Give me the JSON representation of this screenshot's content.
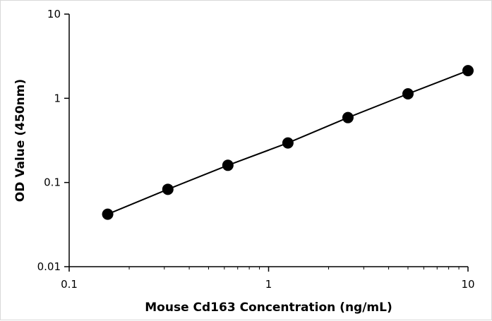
{
  "chart_data": {
    "type": "scatter",
    "title": "",
    "xlabel": "Mouse Cd163 Concentration (ng/mL)",
    "ylabel": "OD Value (450nm)",
    "x_scale": "log",
    "y_scale": "log",
    "xlim": [
      0.1,
      10
    ],
    "ylim": [
      0.01,
      10
    ],
    "x_ticks": [
      0.1,
      1,
      10
    ],
    "x_tick_labels": [
      "0.1",
      "1",
      "10"
    ],
    "y_ticks": [
      0.01,
      0.1,
      1,
      10
    ],
    "y_tick_labels": [
      "0.01",
      "0.1",
      "1",
      "10"
    ],
    "grid": false,
    "legend": "none",
    "fit_line": true,
    "series": [
      {
        "x": [
          0.156,
          0.3125,
          0.625,
          1.25,
          2.5,
          5,
          10
        ],
        "y": [
          0.042,
          0.083,
          0.16,
          0.295,
          0.59,
          1.13,
          2.13
        ]
      }
    ],
    "colors": {
      "marker": "#000000",
      "line": "#000000",
      "axis": "#000000"
    }
  }
}
